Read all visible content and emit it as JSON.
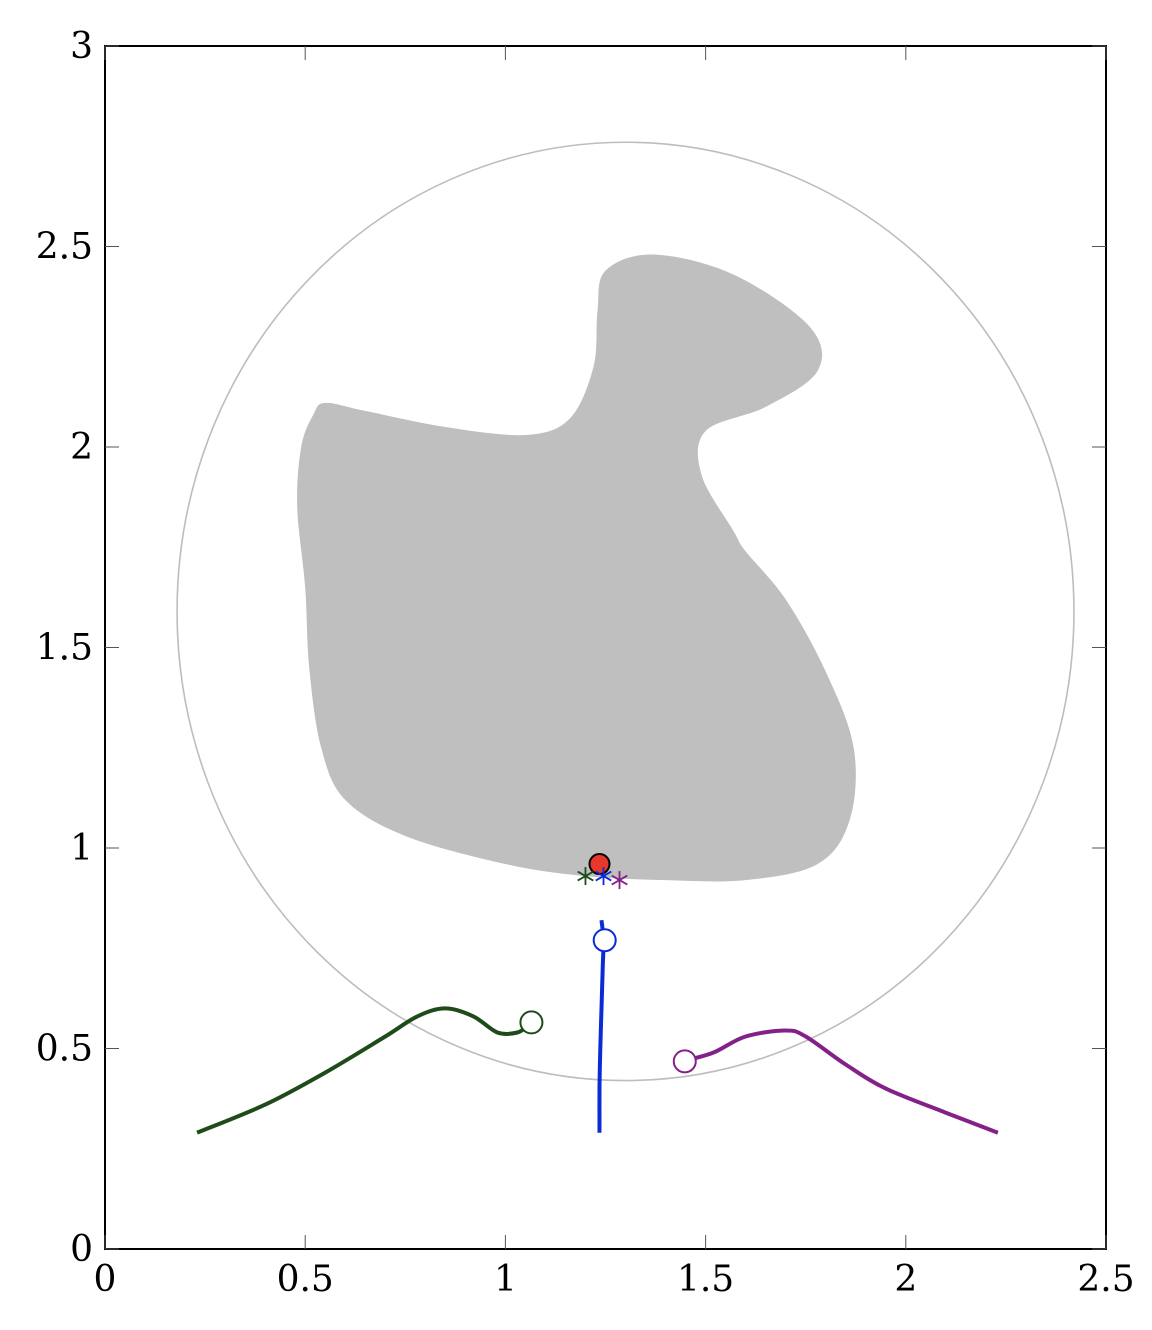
{
  "chart_data": {
    "type": "line",
    "title": "",
    "xlabel": "",
    "ylabel": "",
    "xlim": [
      0,
      2.5
    ],
    "ylim": [
      0,
      3
    ],
    "grid": false,
    "x_ticks": [
      0,
      0.5,
      1,
      1.5,
      2,
      2.5
    ],
    "x_tick_labels": [
      "0",
      "0.5",
      "1",
      "1.5",
      "2",
      "2.5"
    ],
    "y_ticks": [
      0,
      0.5,
      1,
      1.5,
      2,
      2.5,
      3
    ],
    "y_tick_labels": [
      "0",
      "0.5",
      "1",
      "1.5",
      "2",
      "2.5",
      "3"
    ],
    "boundary_ellipse": {
      "cx": 1.3,
      "cy": 1.59,
      "rx": 1.12,
      "ry": 1.17,
      "angle_deg": 0,
      "color": "#bdbdbd"
    },
    "obstacle": {
      "color": "#bfbfbf",
      "points": [
        [
          0.55,
          2.11
        ],
        [
          0.65,
          2.09
        ],
        [
          0.85,
          2.05
        ],
        [
          1.05,
          2.03
        ],
        [
          1.16,
          2.07
        ],
        [
          1.22,
          2.2
        ],
        [
          1.23,
          2.34
        ],
        [
          1.25,
          2.44
        ],
        [
          1.37,
          2.48
        ],
        [
          1.57,
          2.43
        ],
        [
          1.76,
          2.3
        ],
        [
          1.78,
          2.19
        ],
        [
          1.65,
          2.1
        ],
        [
          1.5,
          2.04
        ],
        [
          1.49,
          1.93
        ],
        [
          1.57,
          1.79
        ],
        [
          1.6,
          1.74
        ],
        [
          1.7,
          1.62
        ],
        [
          1.8,
          1.44
        ],
        [
          1.87,
          1.25
        ],
        [
          1.86,
          1.07
        ],
        [
          1.78,
          0.96
        ],
        [
          1.6,
          0.92
        ],
        [
          1.4,
          0.92
        ],
        [
          1.2,
          0.93
        ],
        [
          1.0,
          0.96
        ],
        [
          0.75,
          1.03
        ],
        [
          0.6,
          1.12
        ],
        [
          0.54,
          1.25
        ],
        [
          0.51,
          1.45
        ],
        [
          0.5,
          1.65
        ],
        [
          0.48,
          1.85
        ],
        [
          0.49,
          2.0
        ],
        [
          0.52,
          2.08
        ]
      ]
    },
    "series": [
      {
        "color": "#1f4b1a",
        "points": [
          [
            0.23,
            0.29
          ],
          [
            0.4,
            0.36
          ],
          [
            0.55,
            0.44
          ],
          [
            0.7,
            0.53
          ],
          [
            0.78,
            0.58
          ],
          [
            0.85,
            0.6
          ],
          [
            0.92,
            0.58
          ],
          [
            0.98,
            0.54
          ],
          [
            1.03,
            0.54
          ],
          [
            1.06,
            0.56
          ]
        ],
        "end_marker": [
          1.065,
          0.565
        ],
        "cross_marker": [
          1.2,
          0.93
        ]
      },
      {
        "color": "#0b2bd6",
        "points": [
          [
            1.235,
            0.29
          ],
          [
            1.235,
            0.4
          ],
          [
            1.237,
            0.5
          ],
          [
            1.24,
            0.6
          ],
          [
            1.243,
            0.7
          ],
          [
            1.245,
            0.77
          ],
          [
            1.24,
            0.82
          ]
        ],
        "end_marker": [
          1.248,
          0.77
        ],
        "cross_marker": [
          1.245,
          0.93
        ]
      },
      {
        "color": "#832189",
        "points": [
          [
            2.23,
            0.29
          ],
          [
            2.1,
            0.34
          ],
          [
            1.95,
            0.4
          ],
          [
            1.85,
            0.46
          ],
          [
            1.75,
            0.53
          ],
          [
            1.7,
            0.545
          ],
          [
            1.6,
            0.53
          ],
          [
            1.52,
            0.49
          ],
          [
            1.45,
            0.47
          ]
        ],
        "end_marker": [
          1.448,
          0.468
        ],
        "cross_marker": [
          1.285,
          0.92
        ]
      }
    ],
    "goal_marker": {
      "point": [
        1.235,
        0.96
      ],
      "color": "#e8382b"
    }
  }
}
